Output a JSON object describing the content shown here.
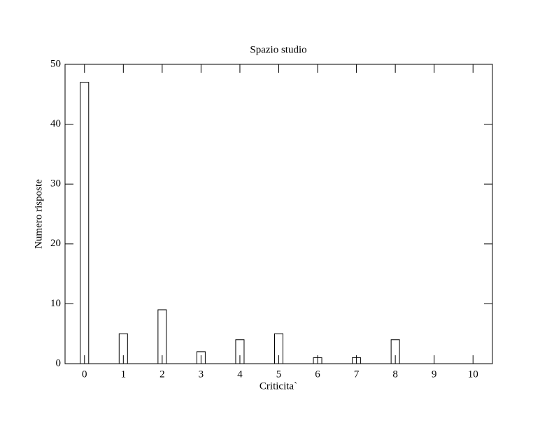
{
  "chart_data": {
    "type": "bar",
    "title": "Spazio studio",
    "x_label": "Criticita`",
    "y_label": "Numero risposte",
    "x": [
      0,
      1,
      2,
      3,
      4,
      5,
      6,
      7,
      8,
      9,
      10
    ],
    "values": [
      47,
      5,
      9,
      2,
      4,
      5,
      1,
      1,
      4,
      0,
      0
    ],
    "color": "#ffffff",
    "xlim": [
      -0.5,
      10.5
    ],
    "xticks": [
      0,
      1,
      2,
      3,
      4,
      5,
      6,
      7,
      8,
      9,
      10
    ],
    "ylim": [
      0,
      50
    ],
    "yticks": [
      0,
      10,
      20,
      30,
      40,
      50
    ]
  }
}
